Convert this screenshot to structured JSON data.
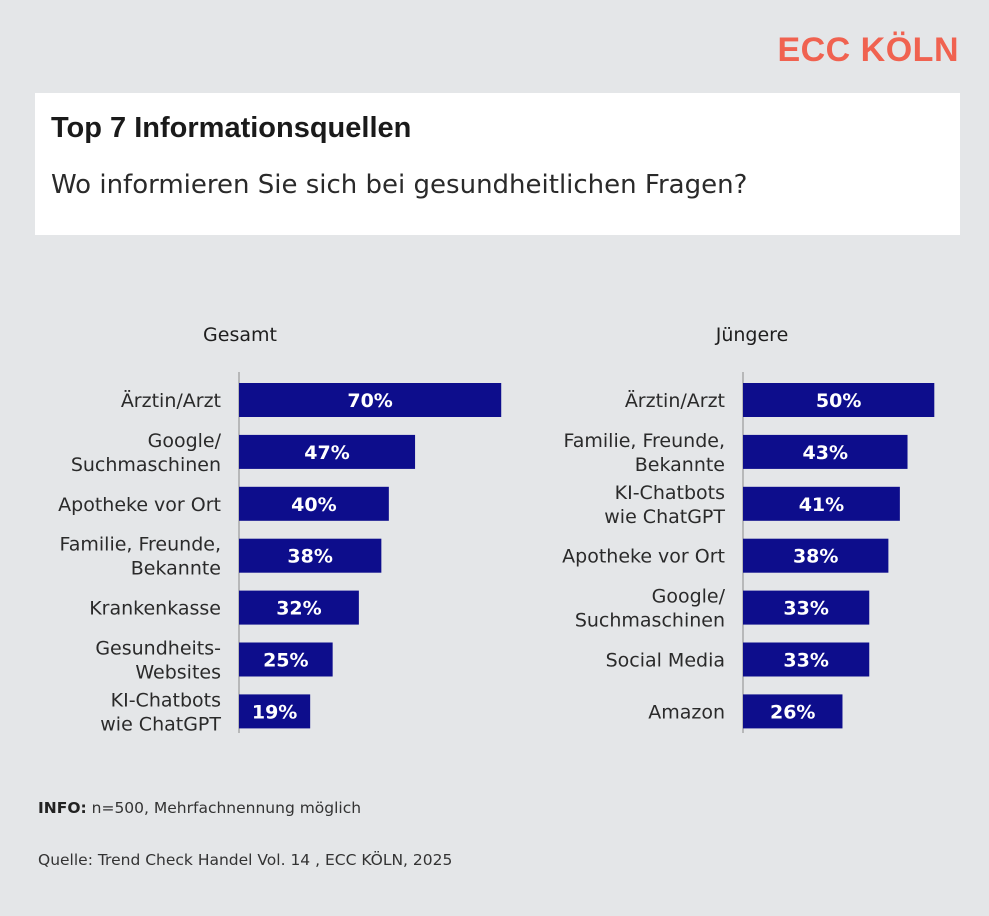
{
  "brand": {
    "name": "ECC KÖLN",
    "color": "#f06250"
  },
  "header": {
    "title": "Top 7 Informationsquellen",
    "subtitle": "Wo informieren Sie sich bei gesundheitlichen Fragen?"
  },
  "footer": {
    "info_label": "INFO:",
    "info_text": " n=500, Mehrfachnennung möglich",
    "source": "Quelle: Trend Check Handel Vol. 14 , ECC KÖLN, 2025"
  },
  "bar_color": "#0d0d8c",
  "chart_data": [
    {
      "type": "bar",
      "orientation": "horizontal",
      "title": "Gesamt",
      "unit": "%",
      "categories": [
        [
          "Ärztin/Arzt"
        ],
        [
          "Google/",
          "Suchmaschinen"
        ],
        [
          "Apotheke vor Ort"
        ],
        [
          "Familie, Freunde,",
          "Bekannte"
        ],
        [
          "Krankenkasse"
        ],
        [
          "Gesundheits-",
          "Websites"
        ],
        [
          "KI-Chatbots",
          "wie ChatGPT"
        ]
      ],
      "values": [
        70,
        47,
        40,
        38,
        32,
        25,
        19
      ],
      "labels": [
        "70%",
        "47%",
        "40%",
        "38%",
        "32%",
        "25%",
        "19%"
      ]
    },
    {
      "type": "bar",
      "orientation": "horizontal",
      "title": "Jüngere",
      "unit": "%",
      "categories": [
        [
          "Ärztin/Arzt"
        ],
        [
          "Familie, Freunde,",
          "Bekannte"
        ],
        [
          "KI-Chatbots",
          "wie ChatGPT"
        ],
        [
          "Apotheke vor Ort"
        ],
        [
          "Google/",
          "Suchmaschinen"
        ],
        [
          "Social Media"
        ],
        [
          "Amazon"
        ]
      ],
      "values": [
        50,
        43,
        41,
        38,
        33,
        33,
        26
      ],
      "labels": [
        "50%",
        "43%",
        "41%",
        "38%",
        "33%",
        "33%",
        "26%"
      ]
    }
  ]
}
